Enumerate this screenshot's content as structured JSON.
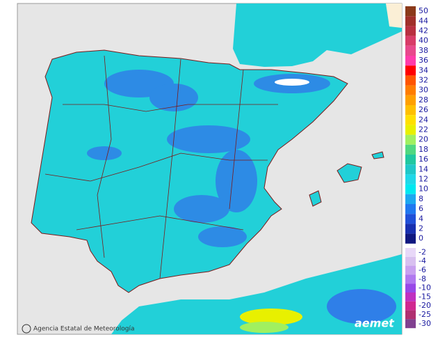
{
  "legend": {
    "levels": [
      {
        "value": 50,
        "color": "#8b3a1a"
      },
      {
        "value": 44,
        "color": "#a0302a"
      },
      {
        "value": 42,
        "color": "#b83040"
      },
      {
        "value": 40,
        "color": "#d83c68"
      },
      {
        "value": 38,
        "color": "#e8488c"
      },
      {
        "value": 36,
        "color": "#ff3caa"
      },
      {
        "value": 34,
        "color": "#ff0000"
      },
      {
        "value": 32,
        "color": "#ff5500"
      },
      {
        "value": 30,
        "color": "#ff7d00"
      },
      {
        "value": 28,
        "color": "#ffa000"
      },
      {
        "value": 26,
        "color": "#ffc000"
      },
      {
        "value": 24,
        "color": "#ffe000"
      },
      {
        "value": 22,
        "color": "#e8f000"
      },
      {
        "value": 20,
        "color": "#a0f060"
      },
      {
        "value": 18,
        "color": "#50d880"
      },
      {
        "value": 16,
        "color": "#20c8a0"
      },
      {
        "value": 14,
        "color": "#20c8c8"
      },
      {
        "value": 12,
        "color": "#20d8e8"
      },
      {
        "value": 10,
        "color": "#00e8f0"
      },
      {
        "value": 8,
        "color": "#1ca8f0"
      },
      {
        "value": 6,
        "color": "#2078f0"
      },
      {
        "value": 4,
        "color": "#2050d8"
      },
      {
        "value": 2,
        "color": "#1830b0"
      },
      {
        "value": 0,
        "color": "#101880"
      }
    ],
    "negative_levels": [
      {
        "value": -2,
        "color": "#e8d8f8"
      },
      {
        "value": -4,
        "color": "#d8c0f0"
      },
      {
        "value": -6,
        "color": "#c8a0f0"
      },
      {
        "value": -8,
        "color": "#b078f0"
      },
      {
        "value": -10,
        "color": "#9848e8"
      },
      {
        "value": -15,
        "color": "#c030c0"
      },
      {
        "value": -20,
        "color": "#d02890"
      },
      {
        "value": -25,
        "color": "#b03070"
      },
      {
        "value": -30,
        "color": "#804090"
      }
    ]
  },
  "footer": {
    "agency": "Agencia Estatal de Meteorología",
    "logo": "aemet"
  }
}
